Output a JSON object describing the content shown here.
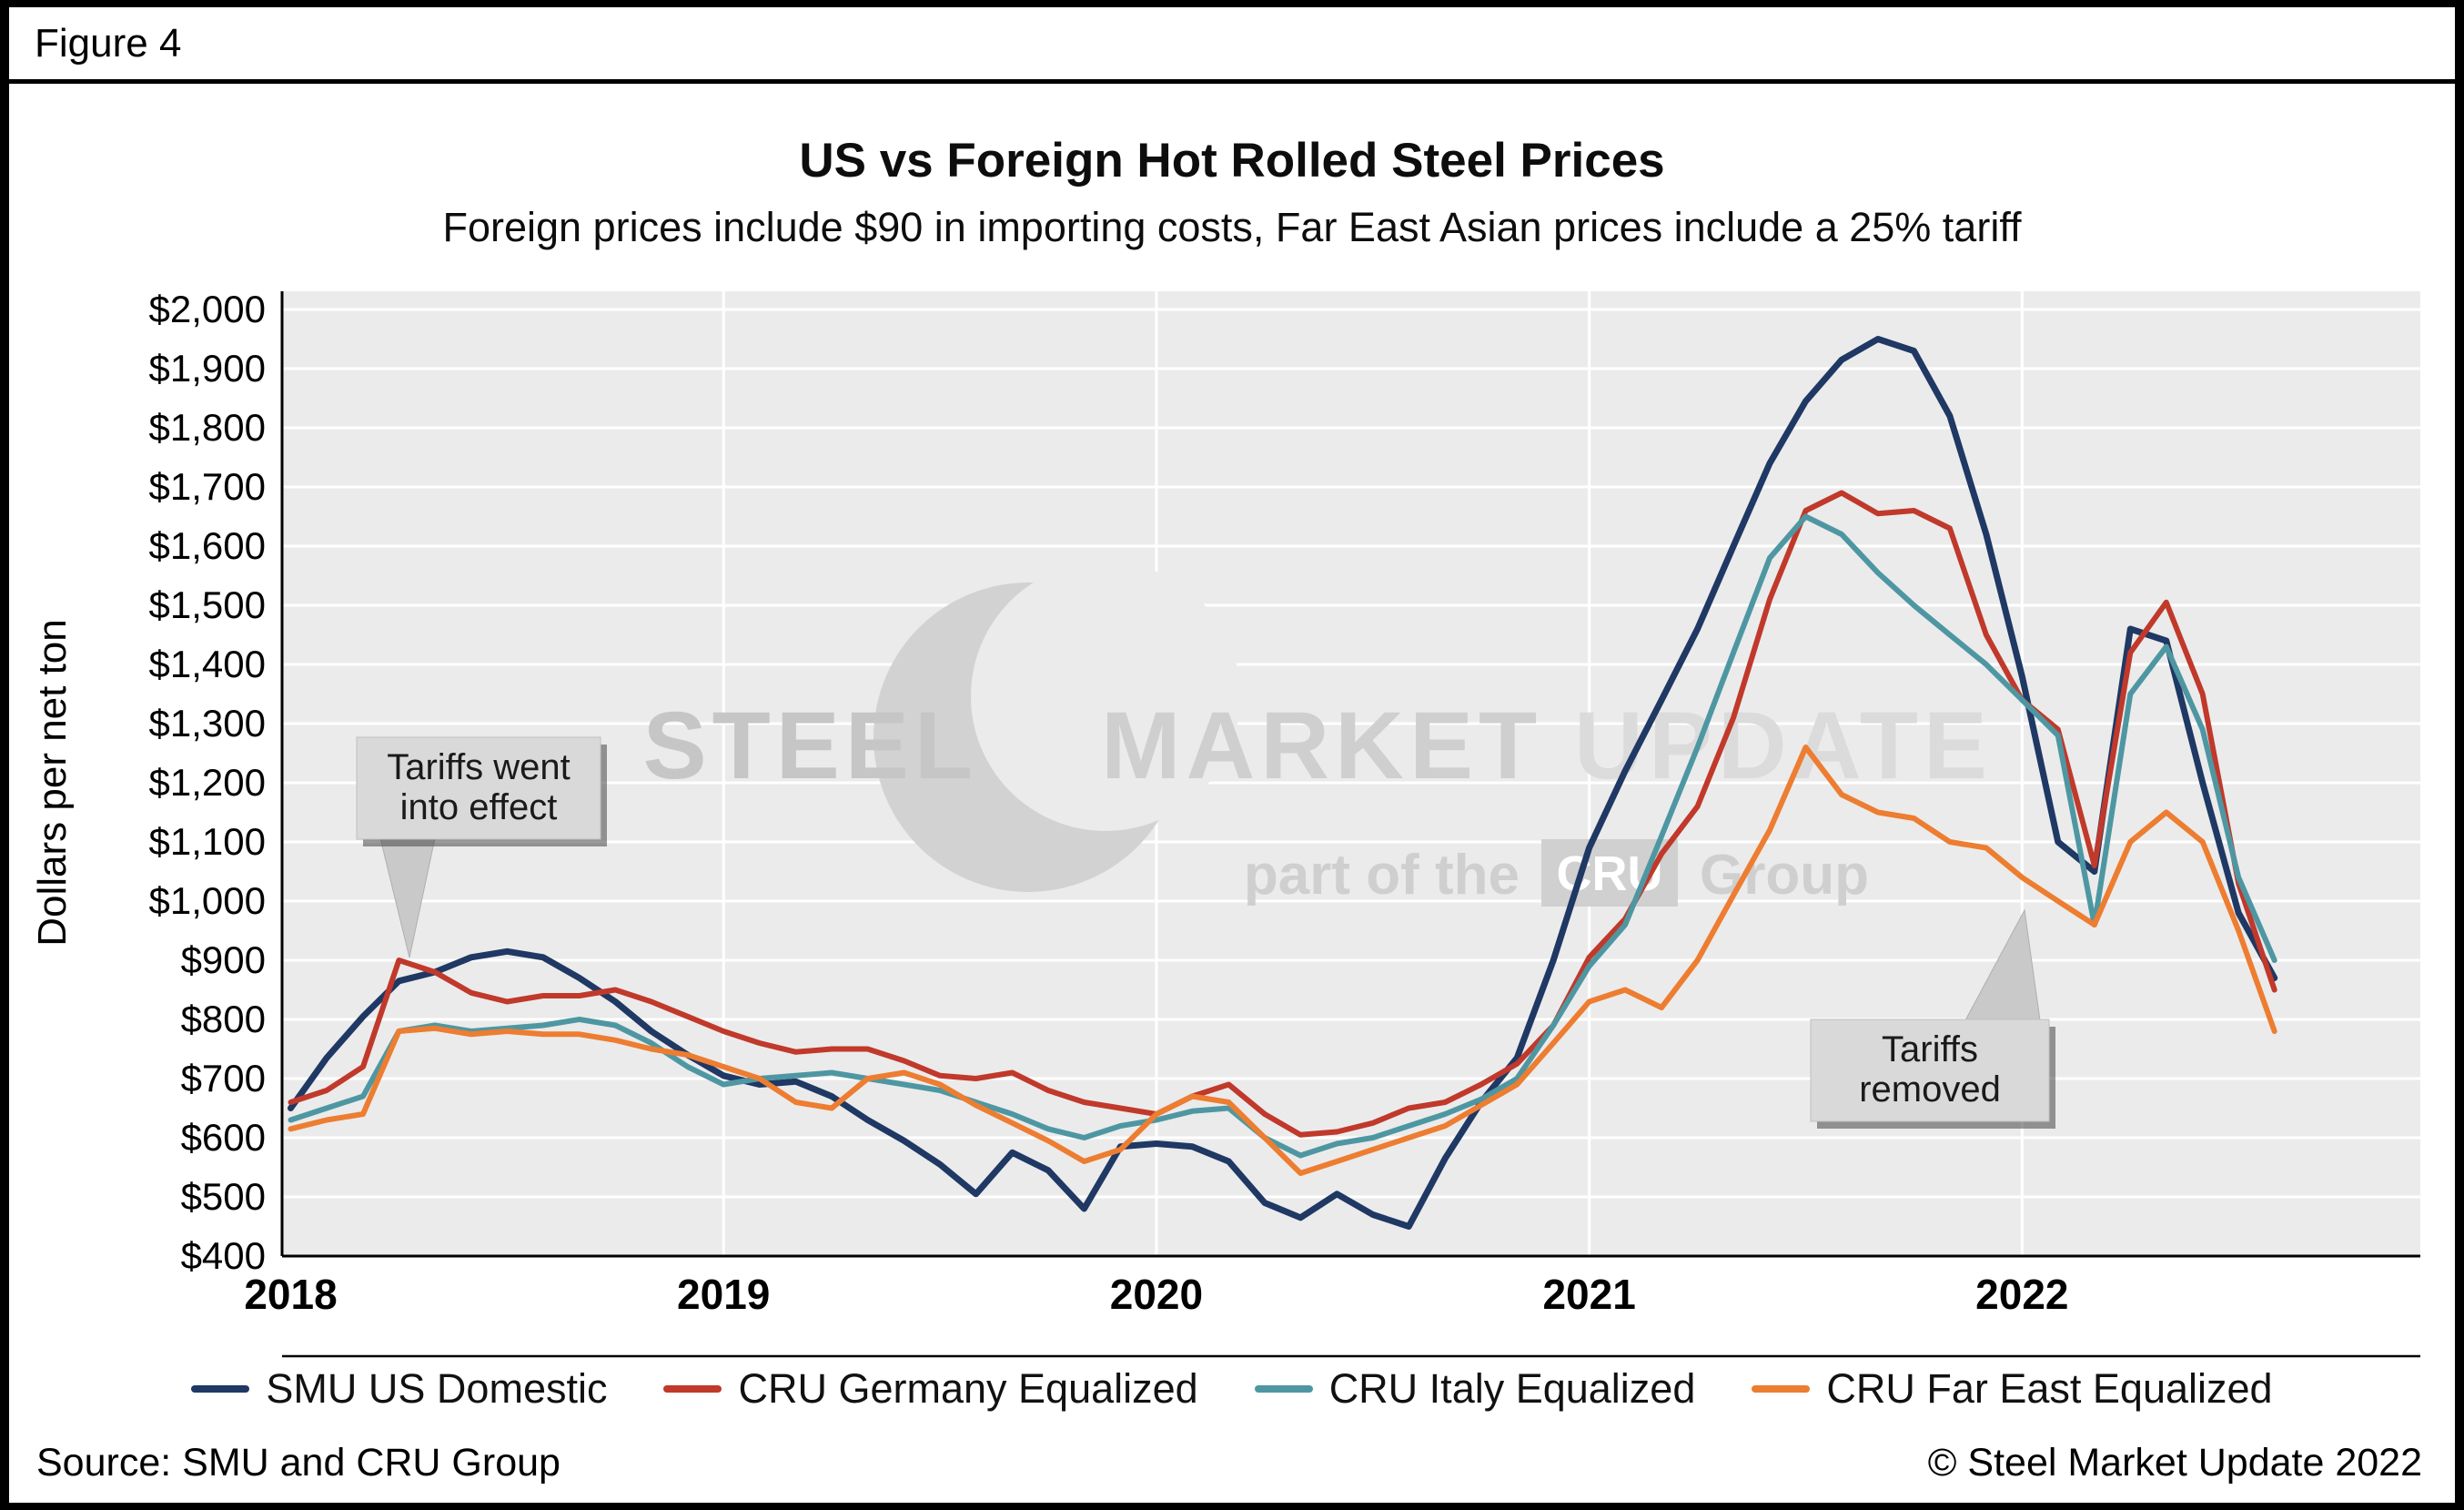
{
  "figure_label": "Figure 4",
  "footer": {
    "source": "Source: SMU and CRU Group",
    "copyright": "© Steel Market Update 2022"
  },
  "watermark": {
    "main_words": [
      "STEEL",
      "MARKET",
      "UPDATE"
    ],
    "sub_prefix": "part of the",
    "sub_box": "CRU",
    "sub_suffix": "Group",
    "color_dark": "#C6C6C6",
    "color_mid": "#CFCFCF",
    "color_light": "#DBDBDB"
  },
  "chart_data": {
    "type": "line",
    "title": "US vs Foreign Hot Rolled Steel Prices",
    "subtitle": "Foreign prices include $90 in importing costs, Far East Asian prices include a 25% tariff",
    "ylabel": "Dollars per net ton",
    "xlabel": "",
    "ylim": [
      400,
      2000
    ],
    "ytick_step": 100,
    "ytick_prefix": "$",
    "xticks": [
      2018,
      2019,
      2020,
      2021,
      2022
    ],
    "x_unit": "decimal_year_monthly",
    "grid": true,
    "legend_position": "bottom",
    "plot_bg": "#EBEBEB",
    "grid_color": "#FFFFFF",
    "axis_color": "#000000",
    "x": [
      2018.0,
      2018.083,
      2018.167,
      2018.25,
      2018.333,
      2018.417,
      2018.5,
      2018.583,
      2018.667,
      2018.75,
      2018.833,
      2018.917,
      2019.0,
      2019.083,
      2019.167,
      2019.25,
      2019.333,
      2019.417,
      2019.5,
      2019.583,
      2019.667,
      2019.75,
      2019.833,
      2019.917,
      2020.0,
      2020.083,
      2020.167,
      2020.25,
      2020.333,
      2020.417,
      2020.5,
      2020.583,
      2020.667,
      2020.75,
      2020.833,
      2020.917,
      2021.0,
      2021.083,
      2021.167,
      2021.25,
      2021.333,
      2021.417,
      2021.5,
      2021.583,
      2021.667,
      2021.75,
      2021.833,
      2021.917,
      2022.0,
      2022.083,
      2022.167,
      2022.25,
      2022.333,
      2022.417,
      2022.5,
      2022.583
    ],
    "series": [
      {
        "name": "SMU US Domestic",
        "color": "#1F3864",
        "values": [
          650,
          735,
          805,
          865,
          880,
          905,
          915,
          905,
          870,
          830,
          780,
          740,
          705,
          690,
          695,
          670,
          630,
          595,
          555,
          505,
          575,
          545,
          480,
          585,
          590,
          585,
          560,
          490,
          465,
          505,
          470,
          450,
          565,
          660,
          735,
          900,
          1090,
          1220,
          1340,
          1460,
          1600,
          1740,
          1845,
          1915,
          1950,
          1930,
          1820,
          1620,
          1380,
          1100,
          1050,
          1460,
          1440,
          1200,
          980,
          870
        ]
      },
      {
        "name": "CRU Germany Equalized",
        "color": "#C0392B",
        "values": [
          660,
          680,
          720,
          900,
          880,
          845,
          830,
          840,
          840,
          850,
          830,
          805,
          780,
          760,
          745,
          750,
          750,
          730,
          705,
          700,
          710,
          680,
          660,
          650,
          640,
          670,
          690,
          640,
          605,
          610,
          625,
          650,
          660,
          690,
          725,
          790,
          905,
          970,
          1080,
          1160,
          1310,
          1510,
          1660,
          1690,
          1655,
          1660,
          1630,
          1450,
          1340,
          1290,
          1060,
          1420,
          1505,
          1350,
          1030,
          850
        ]
      },
      {
        "name": "CRU Italy Equalized",
        "color": "#4E97A2",
        "values": [
          630,
          650,
          670,
          780,
          790,
          780,
          785,
          790,
          800,
          790,
          760,
          720,
          690,
          700,
          705,
          710,
          700,
          690,
          680,
          660,
          640,
          615,
          600,
          620,
          630,
          645,
          650,
          600,
          570,
          590,
          600,
          620,
          640,
          665,
          700,
          790,
          890,
          960,
          1110,
          1260,
          1420,
          1580,
          1650,
          1620,
          1555,
          1500,
          1450,
          1400,
          1340,
          1280,
          960,
          1350,
          1430,
          1290,
          1040,
          900
        ]
      },
      {
        "name": "CRU Far East Equalized",
        "color": "#ED7D31",
        "values": [
          615,
          630,
          640,
          780,
          785,
          775,
          780,
          775,
          775,
          765,
          750,
          740,
          720,
          700,
          660,
          650,
          700,
          710,
          690,
          655,
          625,
          595,
          560,
          580,
          640,
          670,
          660,
          600,
          540,
          560,
          580,
          600,
          620,
          655,
          690,
          760,
          830,
          850,
          820,
          900,
          1010,
          1120,
          1260,
          1180,
          1150,
          1140,
          1100,
          1090,
          1040,
          1000,
          960,
          1100,
          1150,
          1100,
          950,
          780
        ]
      }
    ],
    "annotations": [
      {
        "text": "Tariffs went into effect",
        "lines": [
          "Tariffs went",
          "into effect"
        ]
      },
      {
        "text": "Tariffs removed",
        "lines": [
          "Tariffs",
          "removed"
        ]
      }
    ]
  }
}
